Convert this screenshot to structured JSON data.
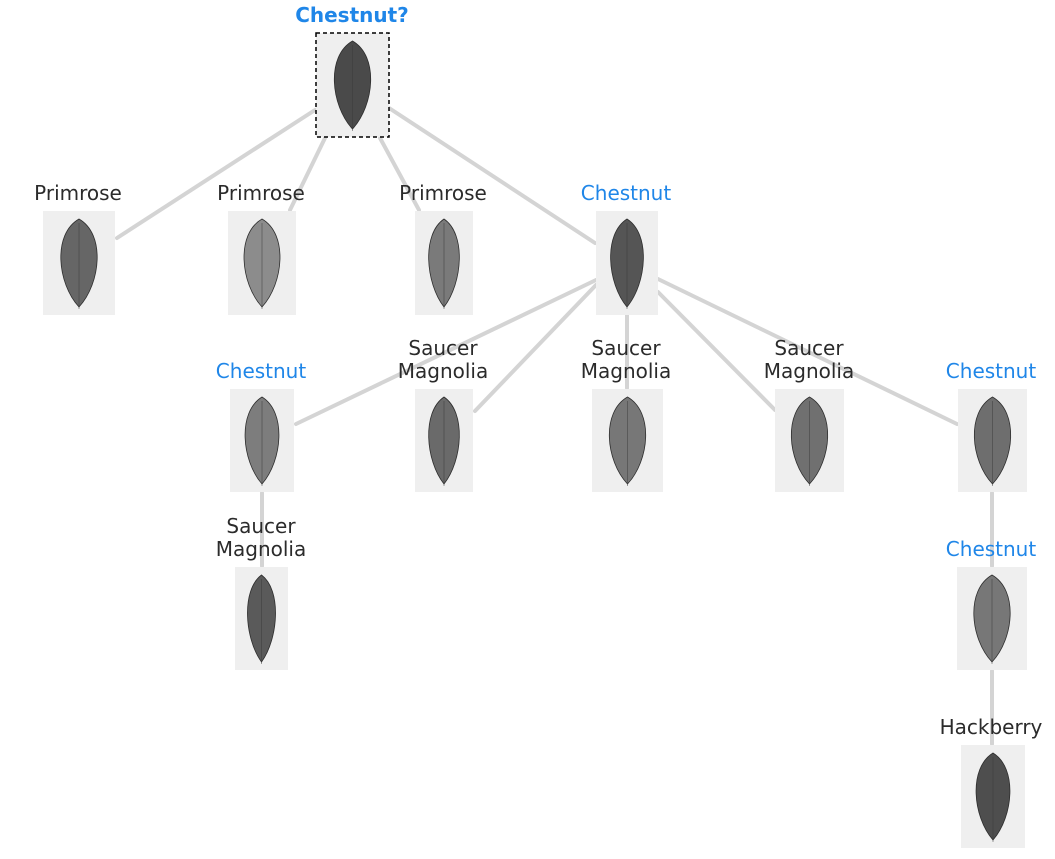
{
  "root": {
    "label": "Chestnut?",
    "highlight": true,
    "leaf_shade": "#4a4a4a"
  },
  "nodes": [
    {
      "id": "n1",
      "label_lines": [
        "Primrose"
      ],
      "highlight": false,
      "leaf_shade": "#666666"
    },
    {
      "id": "n2",
      "label_lines": [
        "Primrose"
      ],
      "highlight": false,
      "leaf_shade": "#8c8c8c"
    },
    {
      "id": "n3",
      "label_lines": [
        "Primrose"
      ],
      "highlight": false,
      "leaf_shade": "#7a7a7a"
    },
    {
      "id": "n4",
      "label_lines": [
        "Chestnut"
      ],
      "highlight": true,
      "leaf_shade": "#555555"
    },
    {
      "id": "n5",
      "label_lines": [
        "Chestnut"
      ],
      "highlight": true,
      "leaf_shade": "#7d7d7d"
    },
    {
      "id": "n6",
      "label_lines": [
        "Saucer",
        "Magnolia"
      ],
      "highlight": false,
      "leaf_shade": "#6a6a6a"
    },
    {
      "id": "n7",
      "label_lines": [
        "Saucer",
        "Magnolia"
      ],
      "highlight": false,
      "leaf_shade": "#777777"
    },
    {
      "id": "n8",
      "label_lines": [
        "Saucer",
        "Magnolia"
      ],
      "highlight": false,
      "leaf_shade": "#707070"
    },
    {
      "id": "n9",
      "label_lines": [
        "Chestnut"
      ],
      "highlight": true,
      "leaf_shade": "#6e6e6e"
    },
    {
      "id": "n10",
      "label_lines": [
        "Saucer",
        "Magnolia"
      ],
      "highlight": false,
      "leaf_shade": "#5a5a5a"
    },
    {
      "id": "n11",
      "label_lines": [
        "Chestnut"
      ],
      "highlight": true,
      "leaf_shade": "#777777"
    },
    {
      "id": "n12",
      "label_lines": [
        "Hackberry"
      ],
      "highlight": false,
      "leaf_shade": "#4e4e4e"
    }
  ],
  "edges": [
    [
      "root",
      "n1"
    ],
    [
      "root",
      "n2"
    ],
    [
      "root",
      "n3"
    ],
    [
      "root",
      "n4"
    ],
    [
      "n4",
      "n5"
    ],
    [
      "n4",
      "n6"
    ],
    [
      "n4",
      "n7"
    ],
    [
      "n4",
      "n8"
    ],
    [
      "n4",
      "n9"
    ],
    [
      "n5",
      "n10"
    ],
    [
      "n9",
      "n11"
    ],
    [
      "n11",
      "n12"
    ]
  ],
  "colors": {
    "highlight": "#1f86e8",
    "text": "#2b2b2b",
    "edge": "#d4d4d4",
    "thumb_bg": "#efefef"
  }
}
